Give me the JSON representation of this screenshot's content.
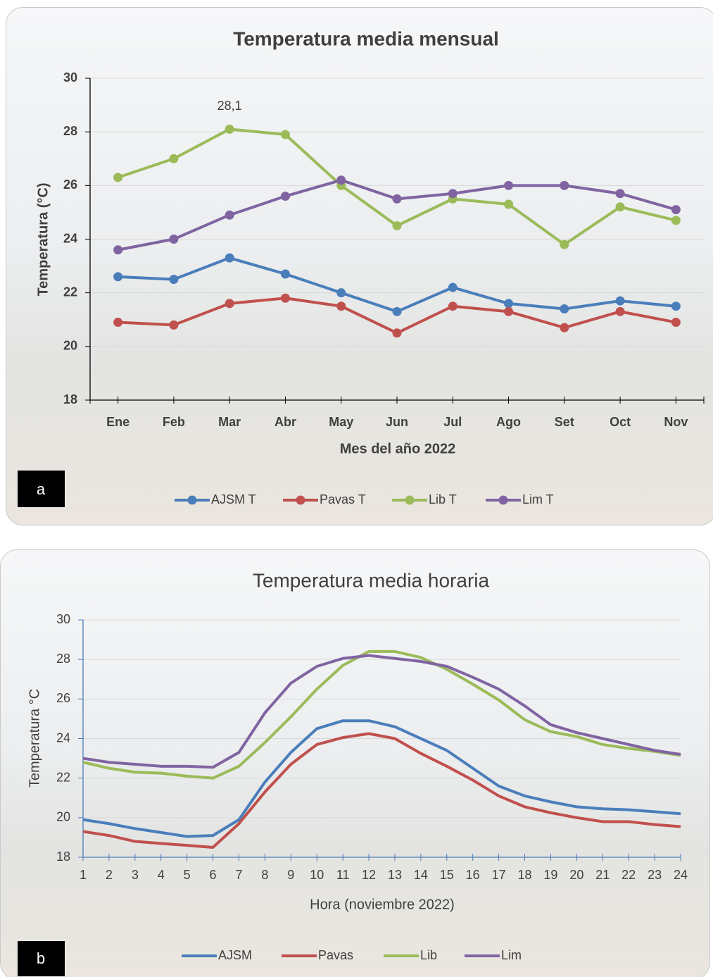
{
  "chart_data": [
    {
      "type": "line",
      "panel_label": "a",
      "title": "Temperatura media mensual",
      "x_label": "Mes del año 2022",
      "y_label": "Temperatura (°C)",
      "categories": [
        "Ene",
        "Feb",
        "Mar",
        "Abr",
        "May",
        "Jun",
        "Jul",
        "Ago",
        "Set",
        "Oct",
        "Nov"
      ],
      "ylim": [
        18,
        30
      ],
      "yticks": [
        18,
        20,
        22,
        24,
        26,
        28,
        30
      ],
      "grid": true,
      "markers": true,
      "series": [
        {
          "name": "AJSM T",
          "color": "#4a7ebb",
          "values": [
            22.6,
            22.5,
            23.3,
            22.7,
            22.0,
            21.3,
            22.2,
            21.6,
            21.4,
            21.7,
            21.5
          ]
        },
        {
          "name": "Pavas T",
          "color": "#c0504d",
          "values": [
            20.9,
            20.8,
            21.6,
            21.8,
            21.5,
            20.5,
            21.5,
            21.3,
            20.7,
            21.3,
            20.9
          ]
        },
        {
          "name": "Lib T",
          "color": "#9bbb59",
          "values": [
            26.3,
            27.0,
            28.1,
            27.9,
            26.0,
            24.5,
            25.5,
            25.3,
            23.8,
            25.2,
            24.7
          ],
          "value_labels": [
            null,
            null,
            "28,1",
            null,
            null,
            null,
            null,
            null,
            null,
            null,
            null
          ]
        },
        {
          "name": "Lim T",
          "color": "#8064a2",
          "values": [
            23.6,
            24.0,
            24.9,
            25.6,
            26.2,
            25.5,
            25.7,
            26.0,
            26.0,
            25.7,
            25.1
          ]
        }
      ]
    },
    {
      "type": "line",
      "panel_label": "b",
      "title": "Temperatura media horaria",
      "x_label": "Hora (noviembre 2022)",
      "y_label": "Temperatura °C",
      "x": [
        1,
        2,
        3,
        4,
        5,
        6,
        7,
        8,
        9,
        10,
        11,
        12,
        13,
        14,
        15,
        16,
        17,
        18,
        19,
        20,
        21,
        22,
        23,
        24
      ],
      "xlim": [
        1,
        24
      ],
      "xticks": [
        1,
        2,
        3,
        4,
        5,
        6,
        7,
        8,
        9,
        10,
        11,
        12,
        13,
        14,
        15,
        16,
        17,
        18,
        19,
        20,
        21,
        22,
        23,
        24
      ],
      "ylim": [
        18,
        30
      ],
      "yticks": [
        18,
        20,
        22,
        24,
        26,
        28,
        30
      ],
      "grid": true,
      "markers": false,
      "series": [
        {
          "name": "AJSM",
          "color": "#4a7ebb",
          "values": [
            19.9,
            19.7,
            19.45,
            19.25,
            19.05,
            19.1,
            19.9,
            21.8,
            23.3,
            24.5,
            24.9,
            24.9,
            24.6,
            24.0,
            23.4,
            22.5,
            21.6,
            21.1,
            20.8,
            20.55,
            20.45,
            20.4,
            20.3,
            20.2
          ]
        },
        {
          "name": "Pavas",
          "color": "#c0504d",
          "values": [
            19.3,
            19.1,
            18.8,
            18.7,
            18.6,
            18.5,
            19.7,
            21.3,
            22.7,
            23.7,
            24.05,
            24.25,
            24.0,
            23.25,
            22.6,
            21.9,
            21.1,
            20.55,
            20.25,
            20.0,
            19.8,
            19.8,
            19.65,
            19.55
          ]
        },
        {
          "name": "Lib",
          "color": "#9bbb59",
          "values": [
            22.8,
            22.5,
            22.3,
            22.25,
            22.1,
            22.0,
            22.6,
            23.8,
            25.1,
            26.5,
            27.7,
            28.4,
            28.4,
            28.1,
            27.5,
            26.75,
            25.95,
            24.95,
            24.35,
            24.1,
            23.7,
            23.5,
            23.35,
            23.15
          ]
        },
        {
          "name": "Lim",
          "color": "#8064a2",
          "values": [
            23.0,
            22.8,
            22.7,
            22.6,
            22.6,
            22.55,
            23.3,
            25.3,
            26.8,
            27.65,
            28.05,
            28.2,
            28.05,
            27.9,
            27.65,
            27.1,
            26.5,
            25.65,
            24.7,
            24.3,
            24.0,
            23.7,
            23.4,
            23.2
          ]
        }
      ]
    }
  ]
}
